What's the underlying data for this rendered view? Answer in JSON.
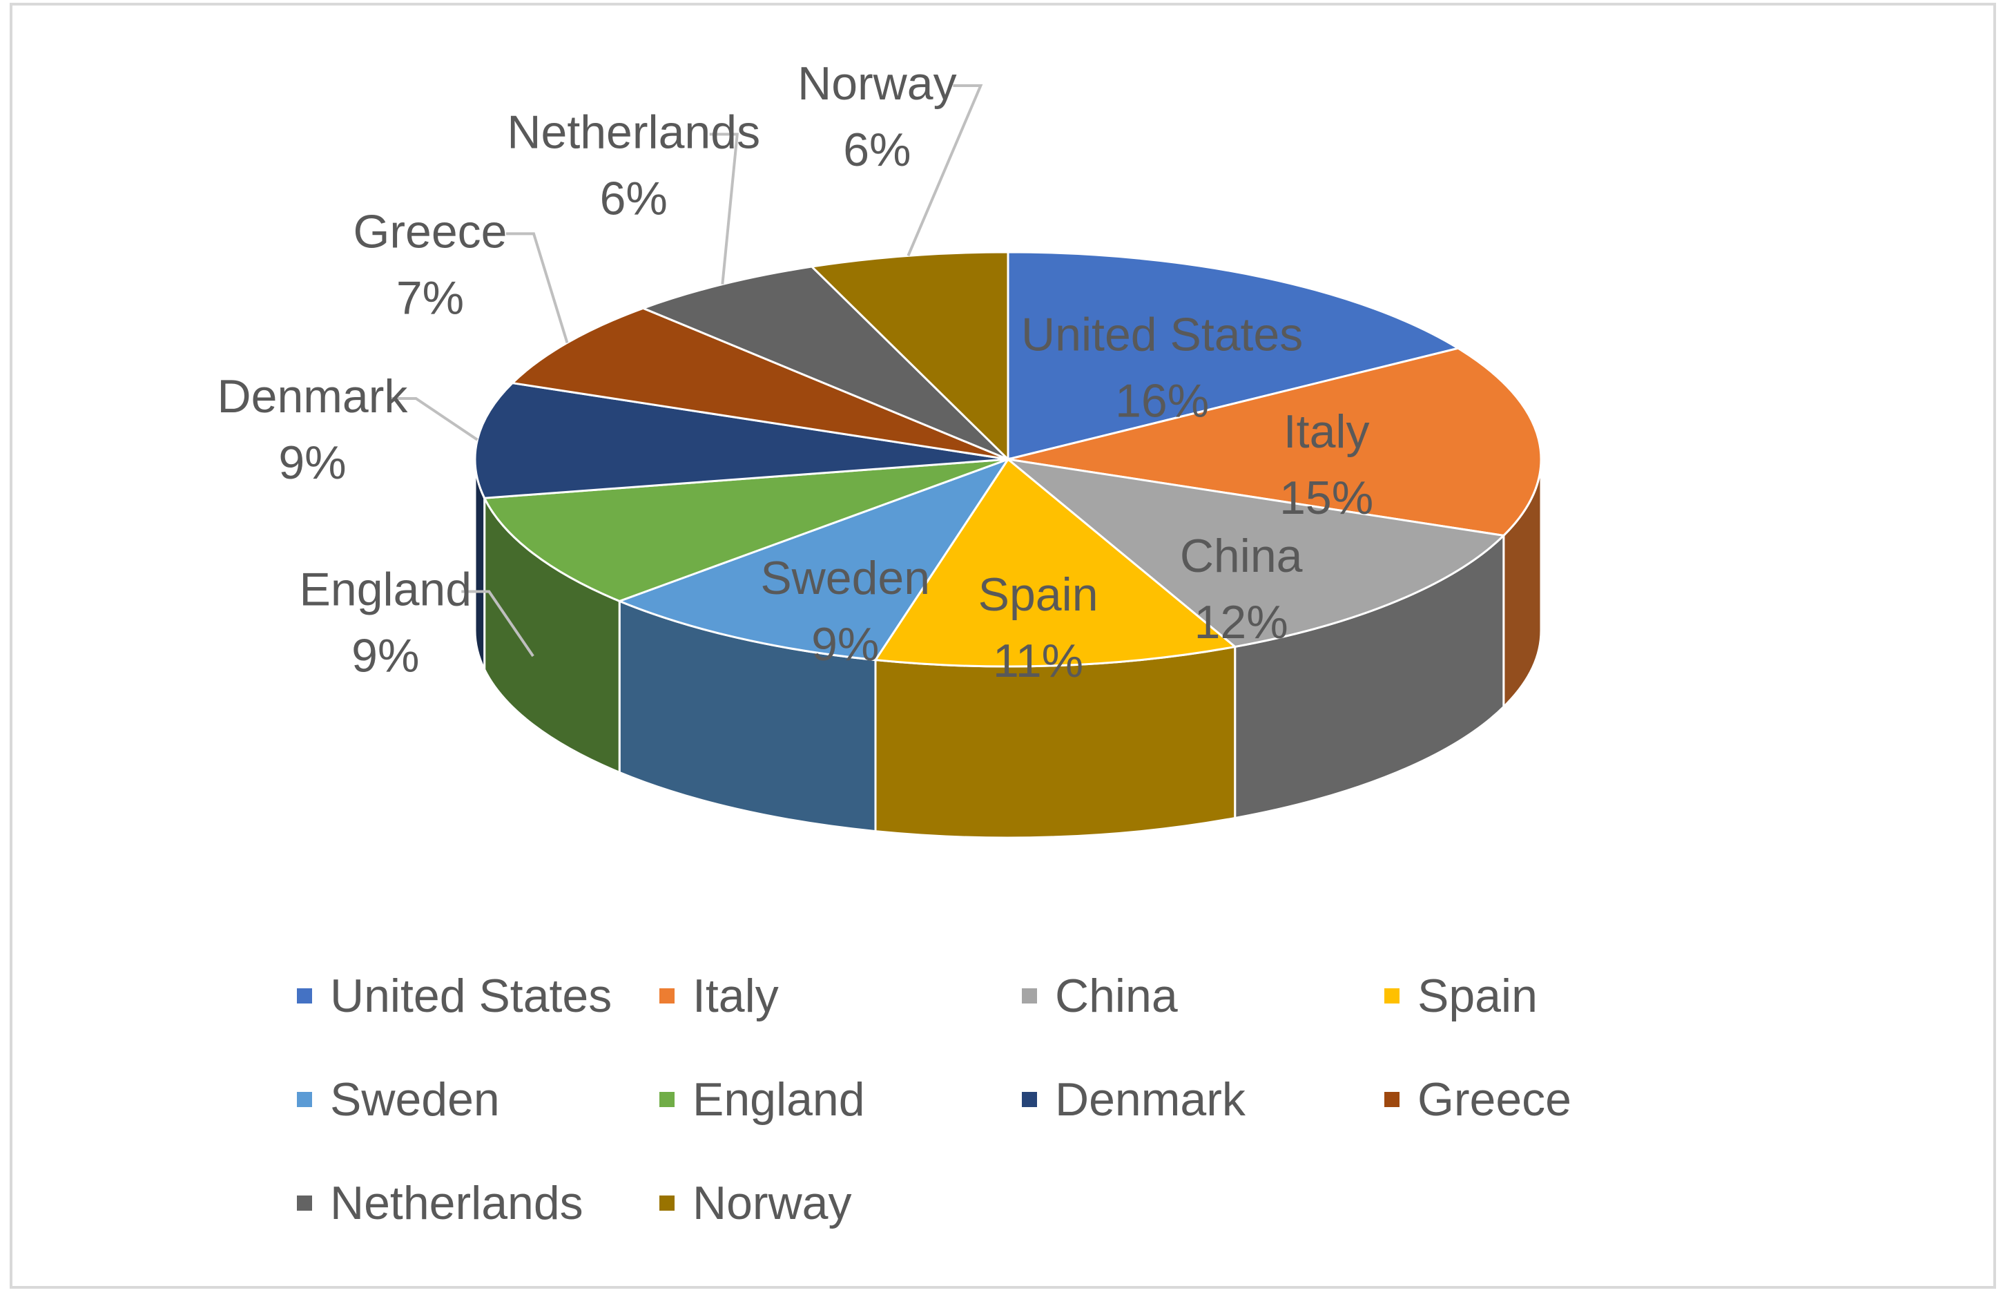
{
  "chart_data": {
    "type": "pie",
    "style": "3d",
    "legend_position": "bottom",
    "label_color": "#595959",
    "slices": [
      {
        "label": "United States",
        "value": 16,
        "value_label": "16%",
        "color": "#4472c4"
      },
      {
        "label": "Italy",
        "value": 15,
        "value_label": "15%",
        "color": "#ed7d31"
      },
      {
        "label": "China",
        "value": 12,
        "value_label": "12%",
        "color": "#a5a5a5"
      },
      {
        "label": "Spain",
        "value": 11,
        "value_label": "11%",
        "color": "#ffc000"
      },
      {
        "label": "Sweden",
        "value": 9,
        "value_label": "9%",
        "color": "#5b9bd5"
      },
      {
        "label": "England",
        "value": 9,
        "value_label": "9%",
        "color": "#70ad47"
      },
      {
        "label": "Denmark",
        "value": 9,
        "value_label": "9%",
        "color": "#264478"
      },
      {
        "label": "Greece",
        "value": 7,
        "value_label": "7%",
        "color": "#9e480e"
      },
      {
        "label": "Netherlands",
        "value": 6,
        "value_label": "6%",
        "color": "#636363"
      },
      {
        "label": "Norway",
        "value": 6,
        "value_label": "6%",
        "color": "#997300"
      }
    ]
  }
}
